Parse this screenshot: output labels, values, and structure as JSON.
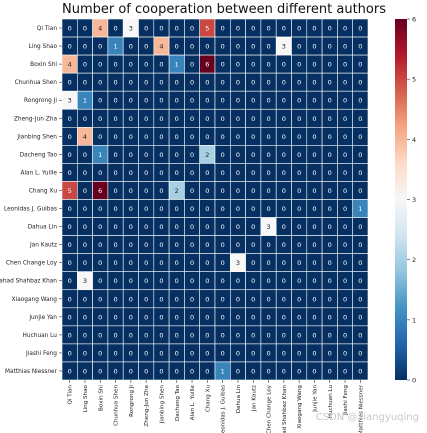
{
  "chart_data": {
    "type": "heatmap",
    "title": "Number of cooperation between different authors",
    "rows": [
      "Qi Tian",
      "Ling Shao",
      "Boxin Shi",
      "Chunhua Shen",
      "Rongrong Ji",
      "Zheng-Jun Zha",
      "Jianbing Shen",
      "Dacheng Tao",
      "Alan L. Yuille",
      "Chang Xu",
      "Leonidas J. Guibas",
      "Dahua Lin",
      "Jan Kautz",
      "Chen Change Loy",
      "Fahad Shahbaz Khan",
      "Xiaogang Wang",
      "Junjie Yan",
      "Huchuan Lu",
      "Jiashi Feng",
      "Matthias Niessner"
    ],
    "columns": [
      "Qi Tian",
      "Ling Shao",
      "Boxin Shi",
      "Chunhua Shen",
      "Rongrong Ji",
      "Zheng-Jun Zha",
      "Jianbing Shen",
      "Dacheng Tao",
      "Alan L. Yuille",
      "Chang Xu",
      "Leonidas J. Guibas",
      "Dahua Lin",
      "Jan Kautz",
      "Chen Change Loy",
      "Fahad Shahbaz Khan",
      "Xiaogang Wang",
      "Junjie Yan",
      "Huchuan Lu",
      "Jiashi Feng",
      "Matthias Niessner"
    ],
    "column_tick_labels": [
      "Qi Tian",
      "Ling Shao",
      "Boxin Shi",
      "Chunhua Shen",
      "Rongrong Ji",
      "Zheng-Jun Zha",
      "Jianbing Shen",
      "Dacheng Tao",
      "Alan L. Yuille",
      "Chang Xu",
      "Leonidas J. Guibas",
      "Dahua Lin",
      "Jan Kautz",
      "Chen Change Loy",
      "Fahad Shahbaz Khan",
      "Xiaogang Wang",
      "Junjie Yan",
      "Huchuan Lu",
      "Jiashi Feng",
      "Matthias Niessner"
    ],
    "values": [
      [
        0,
        0,
        4,
        0,
        3,
        0,
        0,
        0,
        0,
        5,
        0,
        0,
        0,
        0,
        0,
        0,
        0,
        0,
        0,
        0
      ],
      [
        0,
        0,
        0,
        1,
        0,
        0,
        4,
        0,
        0,
        0,
        0,
        0,
        0,
        0,
        3,
        0,
        0,
        0,
        0,
        0
      ],
      [
        4,
        0,
        0,
        0,
        0,
        0,
        0,
        1,
        0,
        6,
        0,
        0,
        0,
        0,
        0,
        0,
        0,
        0,
        0,
        0
      ],
      [
        0,
        0,
        0,
        0,
        0,
        0,
        0,
        0,
        0,
        0,
        0,
        0,
        0,
        0,
        0,
        0,
        0,
        0,
        0,
        0
      ],
      [
        3,
        1,
        0,
        0,
        0,
        0,
        0,
        0,
        0,
        0,
        0,
        0,
        0,
        0,
        0,
        0,
        0,
        0,
        0,
        0
      ],
      [
        0,
        0,
        0,
        0,
        0,
        0,
        0,
        0,
        0,
        0,
        0,
        0,
        0,
        0,
        0,
        0,
        0,
        0,
        0,
        0
      ],
      [
        0,
        4,
        0,
        0,
        0,
        0,
        0,
        0,
        0,
        0,
        0,
        0,
        0,
        0,
        0,
        0,
        0,
        0,
        0,
        0
      ],
      [
        0,
        0,
        1,
        0,
        0,
        0,
        0,
        0,
        0,
        2,
        0,
        0,
        0,
        0,
        0,
        0,
        0,
        0,
        0,
        0
      ],
      [
        0,
        0,
        0,
        0,
        0,
        0,
        0,
        0,
        0,
        0,
        0,
        0,
        0,
        0,
        0,
        0,
        0,
        0,
        0,
        0
      ],
      [
        5,
        0,
        6,
        0,
        0,
        0,
        0,
        2,
        0,
        0,
        0,
        0,
        0,
        0,
        0,
        0,
        0,
        0,
        0,
        0
      ],
      [
        0,
        0,
        0,
        0,
        0,
        0,
        0,
        0,
        0,
        0,
        0,
        0,
        0,
        0,
        0,
        0,
        0,
        0,
        0,
        1
      ],
      [
        0,
        0,
        0,
        0,
        0,
        0,
        0,
        0,
        0,
        0,
        0,
        0,
        0,
        3,
        0,
        0,
        0,
        0,
        0,
        0
      ],
      [
        0,
        0,
        0,
        0,
        0,
        0,
        0,
        0,
        0,
        0,
        0,
        0,
        0,
        0,
        0,
        0,
        0,
        0,
        0,
        0
      ],
      [
        0,
        0,
        0,
        0,
        0,
        0,
        0,
        0,
        0,
        0,
        0,
        3,
        0,
        0,
        0,
        0,
        0,
        0,
        0,
        0
      ],
      [
        0,
        3,
        0,
        0,
        0,
        0,
        0,
        0,
        0,
        0,
        0,
        0,
        0,
        0,
        0,
        0,
        0,
        0,
        0,
        0
      ],
      [
        0,
        0,
        0,
        0,
        0,
        0,
        0,
        0,
        0,
        0,
        0,
        0,
        0,
        0,
        0,
        0,
        0,
        0,
        0,
        0
      ],
      [
        0,
        0,
        0,
        0,
        0,
        0,
        0,
        0,
        0,
        0,
        0,
        0,
        0,
        0,
        0,
        0,
        0,
        0,
        0,
        0
      ],
      [
        0,
        0,
        0,
        0,
        0,
        0,
        0,
        0,
        0,
        0,
        0,
        0,
        0,
        0,
        0,
        0,
        0,
        0,
        0,
        0
      ],
      [
        0,
        0,
        0,
        0,
        0,
        0,
        0,
        0,
        0,
        0,
        0,
        0,
        0,
        0,
        0,
        0,
        0,
        0,
        0,
        0
      ],
      [
        0,
        0,
        0,
        0,
        0,
        0,
        0,
        0,
        0,
        0,
        1,
        0,
        0,
        0,
        0,
        0,
        0,
        0,
        0,
        0
      ]
    ],
    "colorbar": {
      "min": 0,
      "max": 6,
      "ticks": [
        0,
        1,
        2,
        3,
        4,
        5,
        6
      ],
      "colormap": "RdBu_r"
    },
    "annotations": "cell values printed in each cell",
    "grid": true
  },
  "watermark": "CSDN @xiangyuqing"
}
